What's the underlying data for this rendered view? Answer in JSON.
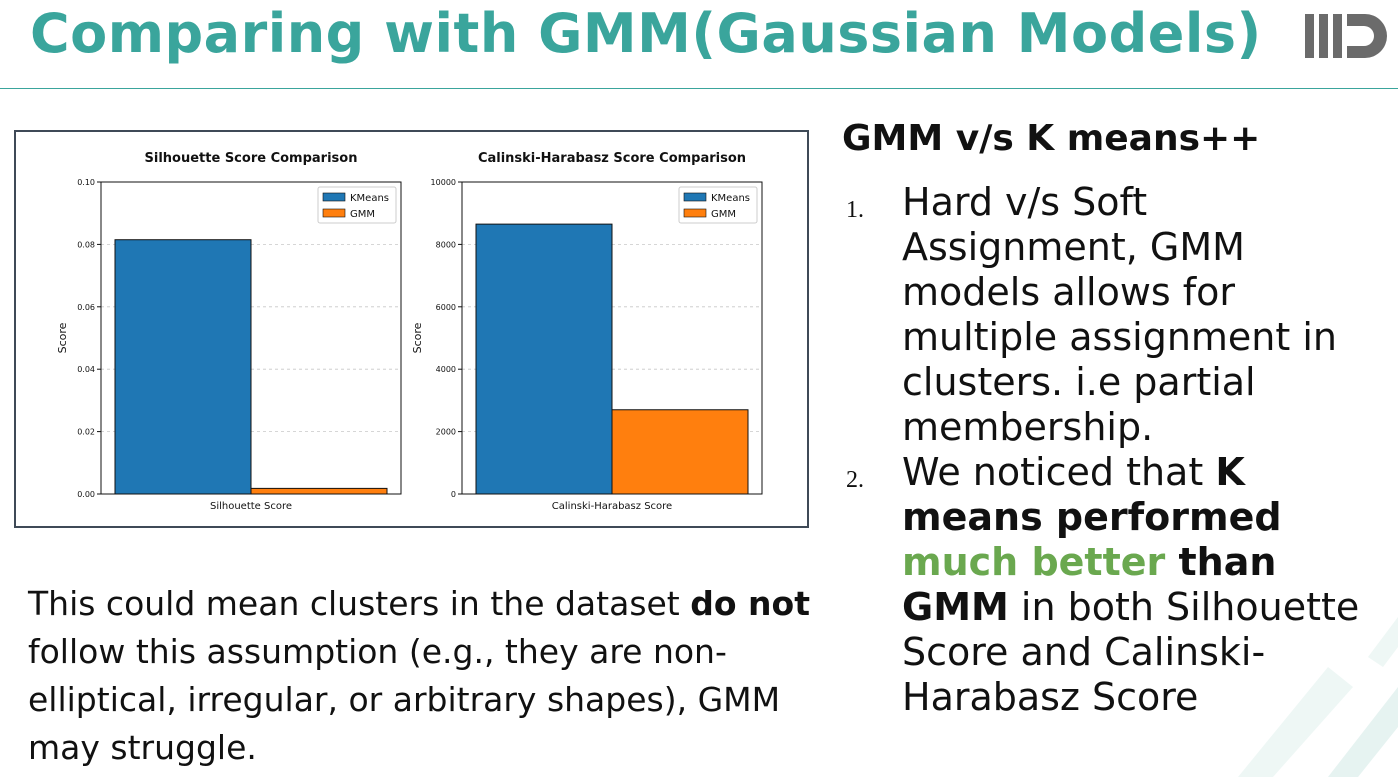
{
  "slide": {
    "title": "Comparing with GMM(Gaussian Models)",
    "logo_text": "IIITD",
    "colors": {
      "title": "#3aa59c",
      "highlight": "#6aa84f",
      "kmeans": "#1f77b4",
      "gmm": "#ff7f0e"
    }
  },
  "right": {
    "heading": "GMM v/s K means++",
    "items": [
      {
        "num": "1.",
        "text": "Hard v/s Soft Assignment, GMM models allows for multiple assignment in clusters. i.e partial membership."
      },
      {
        "num": "2.",
        "pre": "We noticed that ",
        "bold1": "K means performed ",
        "green": "much better",
        "bold2": " than GMM",
        "post": " in both Silhouette Score and Calinski-Harabasz Score"
      }
    ]
  },
  "bottom": {
    "pre": "This could mean clusters in the dataset ",
    "bold": "do not",
    "post": " follow this assumption (e.g., they are non-elliptical, irregular, or arbitrary shapes), GMM may struggle."
  },
  "chart_data": [
    {
      "type": "bar",
      "title": "Silhouette Score Comparison",
      "xlabel": "Silhouette Score",
      "ylabel": "Score",
      "ylim": [
        0,
        0.1
      ],
      "yticks": [
        "0.00",
        "0.02",
        "0.04",
        "0.06",
        "0.08",
        "0.10"
      ],
      "yticks_values": [
        0,
        0.02,
        0.04,
        0.06,
        0.08,
        0.1
      ],
      "series": [
        {
          "name": "KMeans",
          "values": [
            0.0815
          ]
        },
        {
          "name": "GMM",
          "values": [
            0.0018
          ]
        }
      ],
      "grid": true,
      "legend": "top-right"
    },
    {
      "type": "bar",
      "title": "Calinski-Harabasz Score Comparison",
      "xlabel": "Calinski-Harabasz Score",
      "ylabel": "Score",
      "ylim": [
        0,
        10000
      ],
      "yticks": [
        "0",
        "2000",
        "4000",
        "6000",
        "8000",
        "10000"
      ],
      "yticks_values": [
        0,
        2000,
        4000,
        6000,
        8000,
        10000
      ],
      "series": [
        {
          "name": "KMeans",
          "values": [
            8650
          ]
        },
        {
          "name": "GMM",
          "values": [
            2700
          ]
        }
      ],
      "grid": true,
      "legend": "top-right"
    }
  ]
}
